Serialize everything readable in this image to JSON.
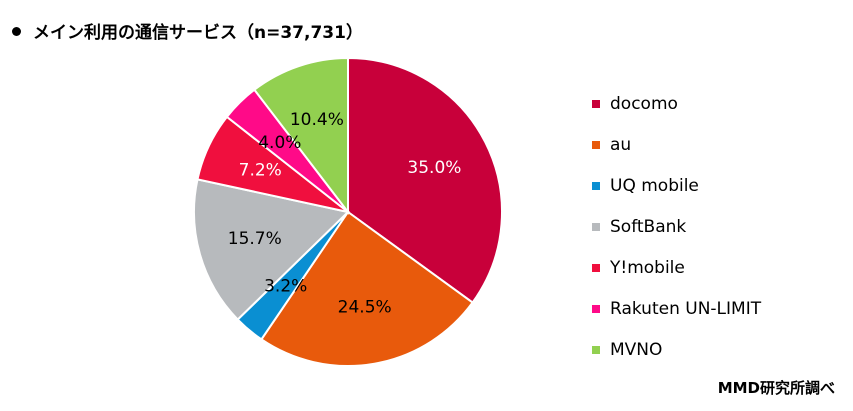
{
  "title": "メイン利用の通信サービス（n=37,731）",
  "source": "MMD研究所調べ",
  "chart_data": {
    "type": "pie",
    "title": "メイン利用の通信サービス（n=37,731）",
    "categories": [
      "docomo",
      "au",
      "UQ mobile",
      "SoftBank",
      "Y!mobile",
      "Rakuten UN-LIMIT",
      "MVNO"
    ],
    "values": [
      35.0,
      24.5,
      3.2,
      15.7,
      7.2,
      4.0,
      10.4
    ],
    "data_labels": [
      "35.0%",
      "24.5%",
      "3.2%",
      "15.7%",
      "7.2%",
      "4.0%",
      "10.4%"
    ],
    "colors": [
      "#c8003a",
      "#e85a0c",
      "#0a8fd2",
      "#b7babd",
      "#f00f3e",
      "#ff0a88",
      "#92d050"
    ],
    "label_colors": [
      "#ffffff",
      "#000000",
      "#000000",
      "#000000",
      "#ffffff",
      "#000000",
      "#000000"
    ],
    "start": "12 o'clock",
    "direction": "clockwise",
    "legend": "right"
  }
}
